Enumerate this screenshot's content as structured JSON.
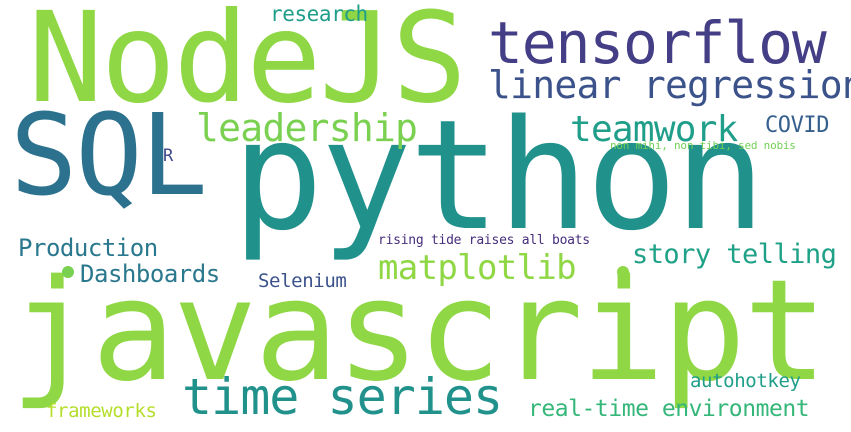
{
  "words": [
    {
      "text": "NodeJS",
      "color": "#8fd744"
    },
    {
      "text": "tensorflow",
      "color": "#433e85"
    },
    {
      "text": "linear regression",
      "color": "#3b528b"
    },
    {
      "text": "research",
      "color": "#1f9e89"
    },
    {
      "text": "SQL",
      "color": "#2c728e"
    },
    {
      "text": "python",
      "color": "#21918c"
    },
    {
      "text": "leadership",
      "color": "#7ad151"
    },
    {
      "text": "teamwork",
      "color": "#1f9e89"
    },
    {
      "text": "COVID",
      "color": "#355f8d"
    },
    {
      "text": "R",
      "color": "#3e4989"
    },
    {
      "text": "non mihi, non tibi, sed nobis",
      "color": "#73d056"
    },
    {
      "text": "Production",
      "color": "#2a788e"
    },
    {
      "text": "rising tide raises all boats",
      "color": "#472d7b"
    },
    {
      "text": "story telling",
      "color": "#1fa187"
    },
    {
      "text": "matplotlib",
      "color": "#8fd744"
    },
    {
      "text": "Dashboards",
      "color": "#2a788e"
    },
    {
      "text": "Selenium",
      "color": "#3b528b"
    },
    {
      "text": "javascript",
      "color": "#8fd744"
    },
    {
      "text": "time series",
      "color": "#21918c"
    },
    {
      "text": "autohotkey",
      "color": "#1f9e89"
    },
    {
      "text": "frameworks",
      "color": "#b5de2b"
    },
    {
      "text": "real-time environment",
      "color": "#35b779"
    }
  ],
  "dots": [
    {
      "color": "#7ad151"
    },
    {
      "color": "#8fd744"
    }
  ]
}
